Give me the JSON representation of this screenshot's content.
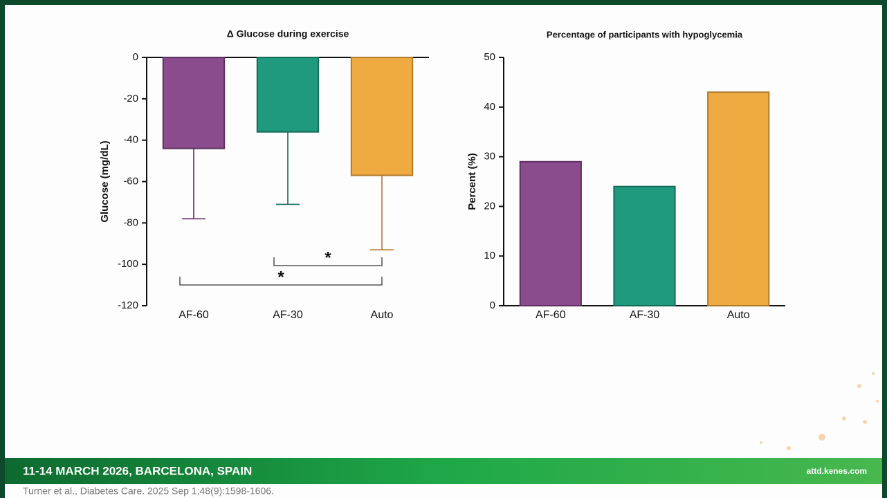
{
  "chart_data": [
    {
      "type": "bar",
      "title": "Δ Glucose during exercise",
      "y_label": "Glucose (mg/dL)",
      "categories": [
        "AF-60",
        "AF-30",
        "Auto"
      ],
      "values": [
        -44,
        -36,
        -57
      ],
      "errors": [
        34,
        35,
        36
      ],
      "colors": [
        "#8a4c8d",
        "#1f9a7e",
        "#efaa42"
      ],
      "edge_colors": [
        "#5e2f62",
        "#136b57",
        "#b07a2c"
      ],
      "ylim": [
        -120,
        0
      ],
      "yticks": [
        0,
        -20,
        -40,
        -60,
        -80,
        -100,
        -120
      ],
      "annotations": [
        {
          "text": "*",
          "between": [
            "AF-30",
            "Auto"
          ]
        },
        {
          "text": "*",
          "between": [
            "AF-60",
            "Auto"
          ]
        }
      ]
    },
    {
      "type": "bar",
      "title": "Percentage of participants with hypoglycemia",
      "y_label": "Percent (%)",
      "categories": [
        "AF-60",
        "AF-30",
        "Auto"
      ],
      "values": [
        29,
        24,
        43
      ],
      "colors": [
        "#8a4c8d",
        "#1f9a7e",
        "#efaa42"
      ],
      "edge_colors": [
        "#5e2f62",
        "#136b57",
        "#b07a2c"
      ],
      "ylim": [
        0,
        50
      ],
      "yticks": [
        0,
        10,
        20,
        30,
        40,
        50
      ]
    }
  ],
  "footer": {
    "event": "11-14 MARCH 2026, BARCELONA, SPAIN",
    "website": "attd.kenes.com",
    "citation": "Turner et al., Diabetes Care. 2025 Sep 1;48(9):1598-1606."
  }
}
